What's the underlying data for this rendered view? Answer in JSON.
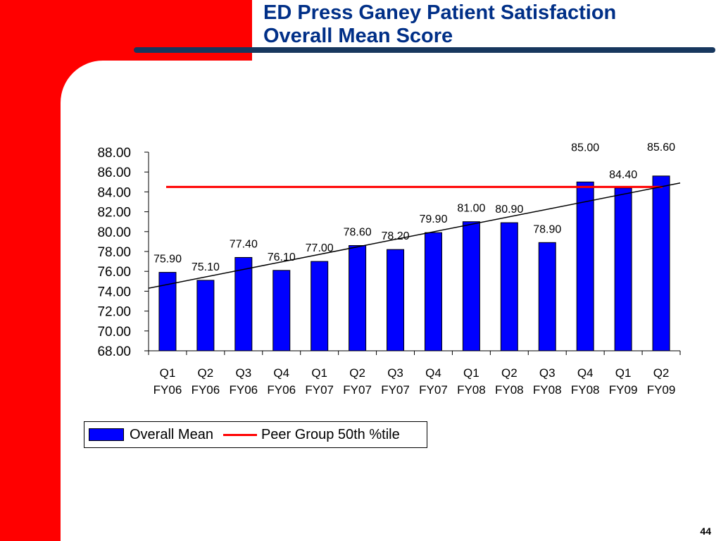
{
  "slide": {
    "title_line1": "ED Press Ganey Patient Satisfaction",
    "title_line2": "Overall Mean Score",
    "page_number": "44"
  },
  "colors": {
    "bar": "#0000ff",
    "peer_line": "#ff0000",
    "trend_line": "#000000",
    "title": "#002f87",
    "accent": "#ff0000"
  },
  "chart_data": {
    "type": "bar",
    "title": "",
    "xlabel": "",
    "ylabel": "",
    "ylim": [
      68,
      88
    ],
    "yticks": [
      "68.00",
      "70.00",
      "72.00",
      "74.00",
      "76.00",
      "78.00",
      "80.00",
      "82.00",
      "84.00",
      "86.00",
      "88.00"
    ],
    "categories": [
      [
        "Q1",
        "FY06"
      ],
      [
        "Q2",
        "FY06"
      ],
      [
        "Q3",
        "FY06"
      ],
      [
        "Q4",
        "FY06"
      ],
      [
        "Q1",
        "FY07"
      ],
      [
        "Q2",
        "FY07"
      ],
      [
        "Q3",
        "FY07"
      ],
      [
        "Q4",
        "FY07"
      ],
      [
        "Q1",
        "FY08"
      ],
      [
        "Q2",
        "FY08"
      ],
      [
        "Q3",
        "FY08"
      ],
      [
        "Q4",
        "FY08"
      ],
      [
        "Q1",
        "FY09"
      ],
      [
        "Q2",
        "FY09"
      ]
    ],
    "series": [
      {
        "name": "Overall Mean",
        "type": "bar",
        "values": [
          75.9,
          75.1,
          77.4,
          76.1,
          77.0,
          78.6,
          78.2,
          79.9,
          81.0,
          80.9,
          78.9,
          85.0,
          84.4,
          85.6
        ],
        "labels": [
          "75.90",
          "75.10",
          "77.40",
          "76.10",
          "77.00",
          "78.60",
          "78.20",
          "79.90",
          "81.00",
          "80.90",
          "78.90",
          "85.00",
          "84.40",
          "85.60"
        ]
      },
      {
        "name": "Peer Group 50th %tile",
        "type": "line",
        "value": 84.5
      }
    ],
    "trendline": {
      "type": "linear",
      "start": 74.3,
      "end": 84.9
    },
    "grid": false,
    "legend": "bottom-left"
  }
}
